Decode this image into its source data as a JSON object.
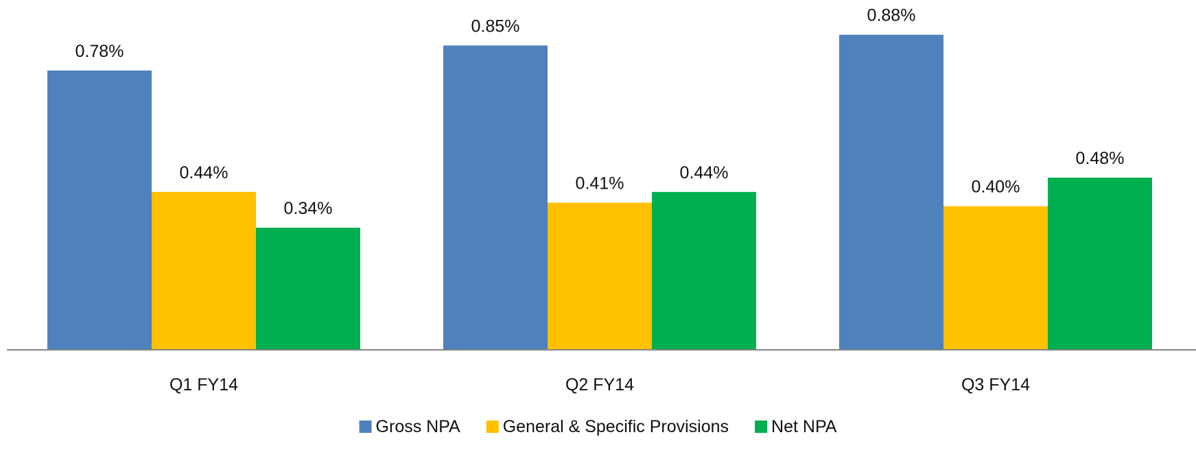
{
  "chart_data": {
    "type": "bar",
    "title": "",
    "xlabel": "",
    "ylabel": "",
    "categories": [
      "Q1 FY14",
      "Q2 FY14",
      "Q3 FY14"
    ],
    "series": [
      {
        "name": "Gross NPA",
        "values": [
          0.78,
          0.85,
          0.88
        ],
        "labels": [
          "0.78%",
          "0.85%",
          "0.88%"
        ],
        "color": "#4f81bd"
      },
      {
        "name": "General & Specific Provisions",
        "values": [
          0.44,
          0.41,
          0.4
        ],
        "labels": [
          "0.44%",
          "0.41%",
          "0.40%"
        ],
        "color": "#ffc000"
      },
      {
        "name": "Net NPA",
        "values": [
          0.34,
          0.44,
          0.48
        ],
        "labels": [
          "0.34%",
          "0.44%",
          "0.48%"
        ],
        "color": "#00b050"
      }
    ],
    "ylim": [
      0,
      0.96
    ],
    "value_format": "percent",
    "grid": false,
    "axis_color": "#868686",
    "legend_position": "bottom"
  }
}
